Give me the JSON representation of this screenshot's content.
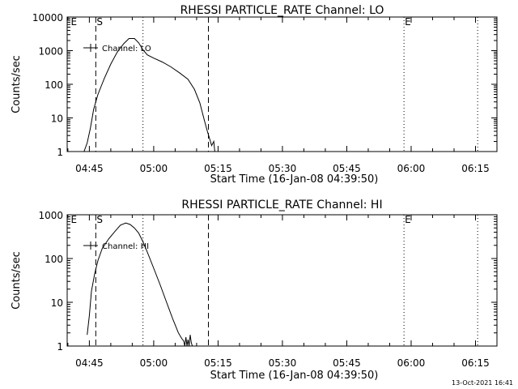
{
  "colors": {
    "background": "#ffffff",
    "foreground": "#000000"
  },
  "footer": {
    "stamp": "13-Oct-2021 16:41"
  },
  "chart_data": [
    {
      "type": "line",
      "title": "RHESSI PARTICLE_RATE Channel: LO",
      "xlabel": "Start Time (16-Jan-08 04:39:50)",
      "ylabel": "Counts/sec",
      "y_scale": "log",
      "ylim": [
        1,
        10000
      ],
      "xlim": [
        "04:39:50",
        "06:20:00"
      ],
      "x_ticks": [
        "04:45",
        "05:00",
        "05:15",
        "05:30",
        "05:45",
        "06:00",
        "06:15"
      ],
      "y_ticks": [
        "1",
        "10",
        "100",
        "1000",
        "10000"
      ],
      "legend": {
        "label": "Channel: LO",
        "placement": "top-left"
      },
      "markers": [
        {
          "label": "E",
          "time": "04:40:30",
          "style": "none"
        },
        {
          "label": "S",
          "time": "04:46:30",
          "style": "dashed"
        },
        {
          "label": "",
          "time": "04:57:30",
          "style": "dotted"
        },
        {
          "label": "",
          "time": "05:12:45",
          "style": "dashed"
        },
        {
          "label": "E",
          "time": "05:58:20",
          "style": "dotted"
        },
        {
          "label": "",
          "time": "06:15:30",
          "style": "dotted"
        }
      ],
      "series": [
        {
          "name": "Channel: LO",
          "x": [
            "04:43:45",
            "04:44:30",
            "04:45:15",
            "04:46:00",
            "04:47:00",
            "04:48:30",
            "04:50:00",
            "04:51:30",
            "04:53:00",
            "04:54:15",
            "04:55:30",
            "04:56:30",
            "04:57:30",
            "04:58:30",
            "05:00:00",
            "05:02:00",
            "05:04:00",
            "05:06:00",
            "05:08:00",
            "05:09:30",
            "05:10:45",
            "05:11:45",
            "05:12:30",
            "05:13:00",
            "05:13:30",
            "05:14:00",
            "05:14:15"
          ],
          "y": [
            1,
            1.8,
            5,
            18,
            50,
            150,
            400,
            900,
            1600,
            2300,
            2300,
            1700,
            1050,
            750,
            600,
            460,
            330,
            220,
            140,
            70,
            28,
            9,
            4,
            2.5,
            1.5,
            2,
            1
          ]
        }
      ]
    },
    {
      "type": "line",
      "title": "RHESSI PARTICLE_RATE Channel: HI",
      "xlabel": "Start Time (16-Jan-08 04:39:50)",
      "ylabel": "Counts/sec",
      "y_scale": "log",
      "ylim": [
        1,
        1000
      ],
      "xlim": [
        "04:39:50",
        "06:20:00"
      ],
      "x_ticks": [
        "04:45",
        "05:00",
        "05:15",
        "05:30",
        "05:45",
        "06:00",
        "06:15"
      ],
      "y_ticks": [
        "1",
        "10",
        "100",
        "1000"
      ],
      "legend": {
        "label": "Channel: HI",
        "placement": "top-left"
      },
      "markers": [
        {
          "label": "E",
          "time": "04:40:30",
          "style": "none"
        },
        {
          "label": "S",
          "time": "04:46:30",
          "style": "dashed"
        },
        {
          "label": "",
          "time": "04:57:30",
          "style": "dotted"
        },
        {
          "label": "",
          "time": "05:12:45",
          "style": "dashed"
        },
        {
          "label": "E",
          "time": "05:58:20",
          "style": "dotted"
        },
        {
          "label": "",
          "time": "06:15:30",
          "style": "dotted"
        }
      ],
      "series": [
        {
          "name": "Channel: HI",
          "x": [
            "04:44:30",
            "04:45:00",
            "04:45:30",
            "04:46:15",
            "04:47:00",
            "04:48:00",
            "04:49:30",
            "04:51:00",
            "04:52:15",
            "04:53:30",
            "04:54:30",
            "04:55:30",
            "04:56:30",
            "04:57:30",
            "04:58:30",
            "05:00:00",
            "05:01:30",
            "05:03:00",
            "05:04:30",
            "05:05:45",
            "05:06:30",
            "05:07:00",
            "05:07:15",
            "05:07:30",
            "05:07:45",
            "05:08:00",
            "05:08:15",
            "05:08:30",
            "05:08:45",
            "05:09:00"
          ],
          "y": [
            1.8,
            5,
            18,
            45,
            90,
            170,
            280,
            420,
            580,
            650,
            600,
            500,
            380,
            240,
            140,
            60,
            25,
            10,
            4,
            2,
            1.5,
            1.3,
            1,
            1.6,
            1,
            1.4,
            1,
            1.8,
            1.2,
            1
          ]
        }
      ]
    }
  ]
}
